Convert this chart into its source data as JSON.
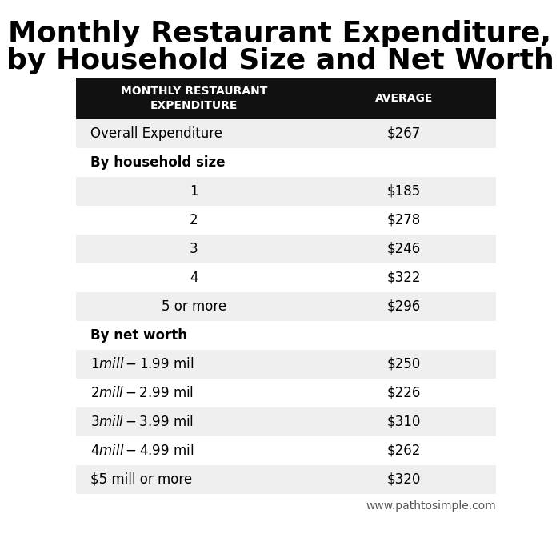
{
  "title_line1": "Monthly Restaurant Expenditure,",
  "title_line2": "by Household Size and Net Worth",
  "title_fontsize": 26,
  "col1_header": "MONTHLY RESTAURANT\nEXPENDITURE",
  "col2_header": "AVERAGE",
  "header_bg": "#111111",
  "header_fg": "#ffffff",
  "header_fontsize": 10,
  "rows": [
    {
      "label": "Overall Expenditure",
      "value": "$267",
      "bold": false,
      "shaded": true,
      "indent": false,
      "is_section": false
    },
    {
      "label": "By household size",
      "value": "",
      "bold": true,
      "shaded": false,
      "indent": false,
      "is_section": true
    },
    {
      "label": "1",
      "value": "$185",
      "bold": false,
      "shaded": true,
      "indent": true,
      "is_section": false
    },
    {
      "label": "2",
      "value": "$278",
      "bold": false,
      "shaded": false,
      "indent": true,
      "is_section": false
    },
    {
      "label": "3",
      "value": "$246",
      "bold": false,
      "shaded": true,
      "indent": true,
      "is_section": false
    },
    {
      "label": "4",
      "value": "$322",
      "bold": false,
      "shaded": false,
      "indent": true,
      "is_section": false
    },
    {
      "label": "5 or more",
      "value": "$296",
      "bold": false,
      "shaded": true,
      "indent": true,
      "is_section": false
    },
    {
      "label": "By net worth",
      "value": "",
      "bold": true,
      "shaded": false,
      "indent": false,
      "is_section": true
    },
    {
      "label": "$1 mill - $1.99 mil",
      "value": "$250",
      "bold": false,
      "shaded": true,
      "indent": false,
      "is_section": false
    },
    {
      "label": "$2 mill - $2.99 mil",
      "value": "$226",
      "bold": false,
      "shaded": false,
      "indent": false,
      "is_section": false
    },
    {
      "label": "$3 mill - $3.99 mil",
      "value": "$310",
      "bold": false,
      "shaded": true,
      "indent": false,
      "is_section": false
    },
    {
      "label": "$4 mill - $4.99 mil",
      "value": "$262",
      "bold": false,
      "shaded": false,
      "indent": false,
      "is_section": false
    },
    {
      "label": "$5 mill or more",
      "value": "$320",
      "bold": false,
      "shaded": true,
      "indent": false,
      "is_section": false
    }
  ],
  "row_fontsize": 12,
  "shaded_color": "#efefef",
  "white_color": "#ffffff",
  "footer_text": "www.pathtosimple.com",
  "footer_fontsize": 10,
  "bg_color": "#ffffff"
}
